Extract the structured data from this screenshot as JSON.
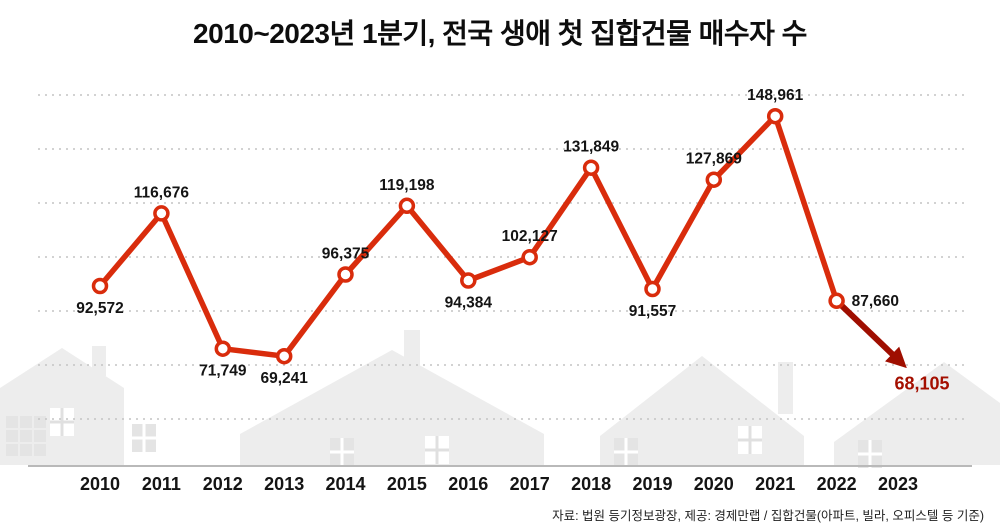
{
  "title": "2010~2023년 1분기, 전국 생애 첫 집합건물 매수자 수",
  "source_note": "자료: 법원 등기정보광장, 제공: 경제만랩 / 집합건물(아파트, 빌라, 오피스텔 등 기준)",
  "colors": {
    "line": "#d92c0c",
    "line_dark": "#9f0e00",
    "final_label": "#a40f00",
    "label_text": "#141414",
    "grid": "#c4c4c4",
    "axis": "#b9b9b9",
    "houses": "#ededed"
  },
  "chart_data": {
    "type": "line",
    "title": "2010~2023년 1분기, 전국 생애 첫 집합건물 매수자 수",
    "categories": [
      "2010",
      "2011",
      "2012",
      "2013",
      "2014",
      "2015",
      "2016",
      "2017",
      "2018",
      "2019",
      "2020",
      "2021",
      "2022",
      "2023"
    ],
    "values": [
      92572,
      116676,
      71749,
      69241,
      96375,
      119198,
      94384,
      102127,
      131849,
      91557,
      127869,
      148961,
      87660,
      68105
    ],
    "point_labels": [
      "92,572",
      "116,676",
      "71,749",
      "69,241",
      "96,375",
      "119,198",
      "94,384",
      "102,127",
      "131,849",
      "91,557",
      "127,869",
      "148,961",
      "87,660",
      "68,105"
    ],
    "label_positions": [
      "below",
      "above",
      "below",
      "below",
      "above",
      "above",
      "below",
      "above",
      "above",
      "below",
      "above",
      "above",
      "right",
      "below-right"
    ],
    "ylim": [
      65000,
      152000
    ],
    "grid": "horizontal-dotted",
    "legend": "none",
    "final_point_style": "dark-red-arrow"
  }
}
